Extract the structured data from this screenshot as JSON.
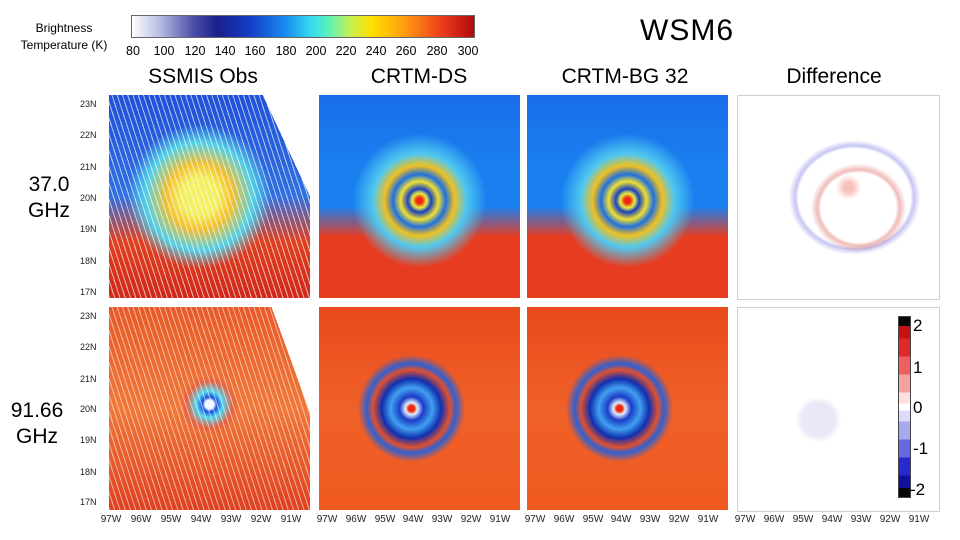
{
  "colorbar": {
    "label_line1": "Brightness",
    "label_line2": "Temperature (K)",
    "ticks": [
      "80",
      "100",
      "120",
      "140",
      "160",
      "180",
      "200",
      "220",
      "240",
      "260",
      "280",
      "300"
    ]
  },
  "title": "WSM6",
  "columns": [
    "SSMIS Obs",
    "CRTM-DS",
    "CRTM-BG 32",
    "Difference"
  ],
  "rows": [
    {
      "line1": "37.0",
      "line2": "GHz"
    },
    {
      "line1": "91.66",
      "line2": "GHz"
    }
  ],
  "lat_labels": [
    "23N",
    "22N",
    "21N",
    "20N",
    "19N",
    "18N",
    "17N"
  ],
  "lon_labels": [
    "97W",
    "96W",
    "95W",
    "94W",
    "93W",
    "92W",
    "91W"
  ],
  "diff_colorbar": {
    "ticks": [
      "2",
      "1",
      "0",
      "-1",
      "-2"
    ]
  }
}
